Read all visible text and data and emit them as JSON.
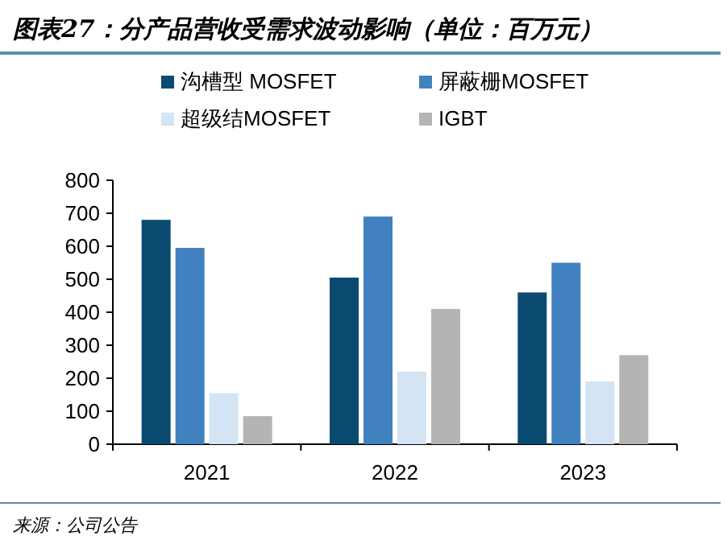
{
  "chart_data": {
    "type": "bar",
    "title": "图表27：分产品营收受需求波动影响（单位：百万元）",
    "categories": [
      "2021",
      "2022",
      "2023"
    ],
    "series": [
      {
        "name": "沟槽型 MOSFET",
        "color": "#0b4a70",
        "values": [
          680,
          505,
          460
        ]
      },
      {
        "name": "屏蔽栅MOSFET",
        "color": "#4281c0",
        "values": [
          595,
          690,
          550
        ]
      },
      {
        "name": "超级结MOSFET",
        "color": "#d3e4f4",
        "values": [
          155,
          220,
          190
        ]
      },
      {
        "name": "IGBT",
        "color": "#b4b4b4",
        "values": [
          85,
          410,
          270
        ]
      }
    ],
    "ylim": [
      0,
      800
    ],
    "yticks": [
      0,
      100,
      200,
      300,
      400,
      500,
      600,
      700,
      800
    ],
    "legend": "top",
    "grid": false,
    "annotations": [
      "来源：公司公告"
    ]
  }
}
